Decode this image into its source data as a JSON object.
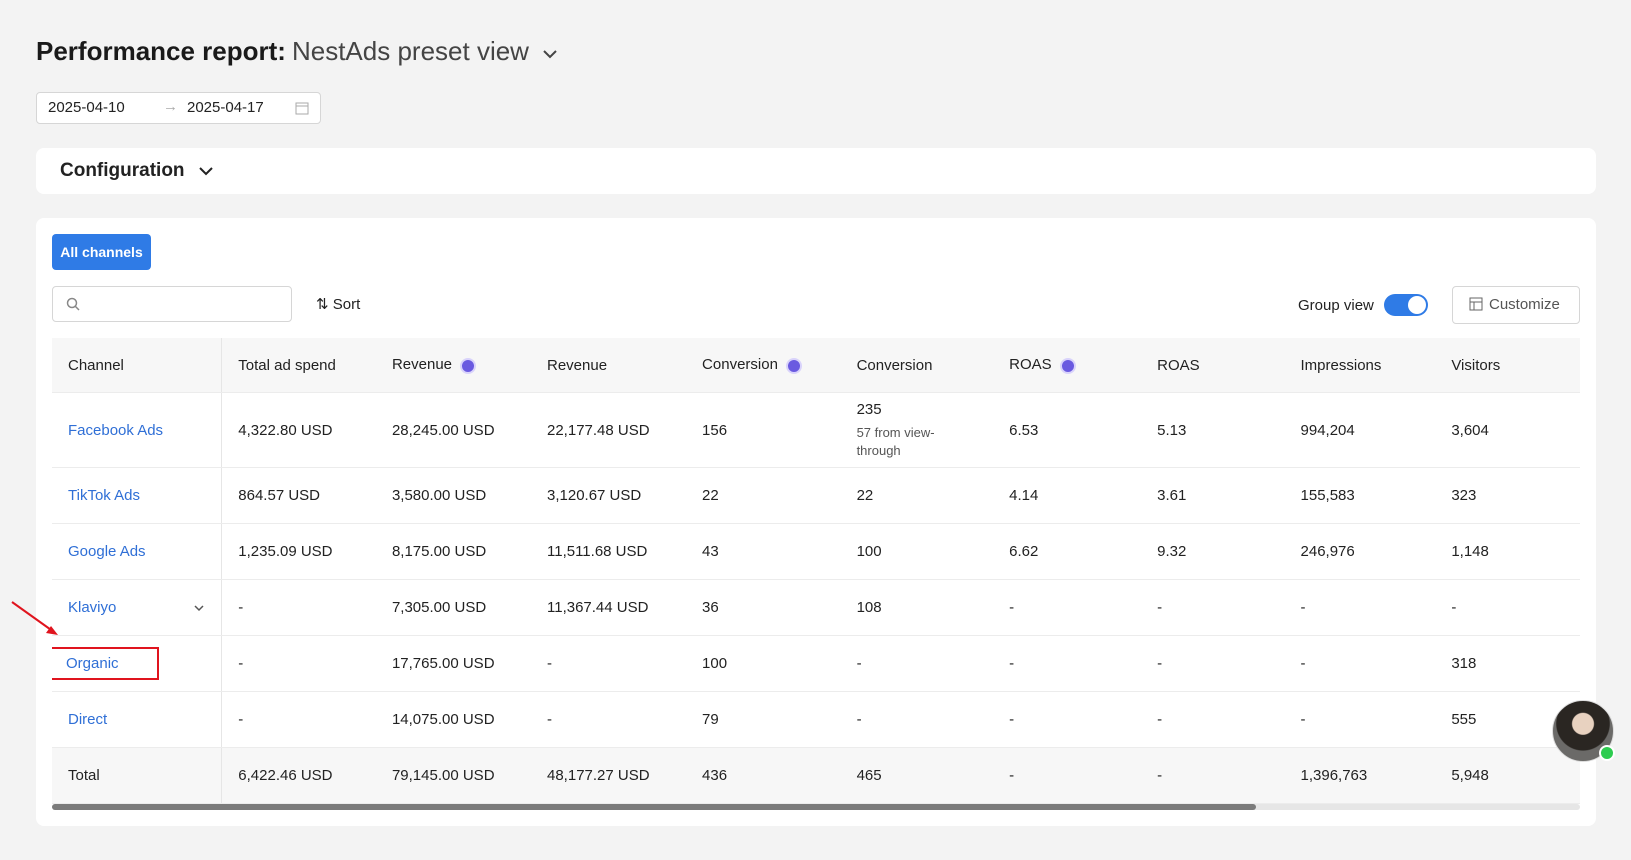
{
  "header": {
    "title": "Performance report:",
    "view": "NestAds preset view"
  },
  "date_range": {
    "start": "2025-04-10",
    "end": "2025-04-17"
  },
  "configuration": "Configuration",
  "tab": "All channels",
  "sort": "Sort",
  "group_view": {
    "label": "Group view",
    "on": true
  },
  "customize": "Customize",
  "table": {
    "columns": [
      {
        "label": "Channel"
      },
      {
        "label": "Total ad spend"
      },
      {
        "label": "Revenue",
        "icon": true
      },
      {
        "label": "Revenue"
      },
      {
        "label": "Conversion",
        "icon": true
      },
      {
        "label": "Conversion"
      },
      {
        "label": "ROAS",
        "icon": true
      },
      {
        "label": "ROAS"
      },
      {
        "label": "Impressions"
      },
      {
        "label": "Visitors"
      }
    ],
    "rows": [
      {
        "channel": "Facebook Ads",
        "cells": [
          "4,322.80 USD",
          "28,245.00 USD",
          "22,177.48 USD",
          "156",
          {
            "value": "235",
            "note": "57 from view-through"
          },
          "6.53",
          "5.13",
          "994,204",
          "3,604"
        ]
      },
      {
        "channel": "TikTok Ads",
        "cells": [
          "864.57 USD",
          "3,580.00 USD",
          "3,120.67 USD",
          "22",
          "22",
          "4.14",
          "3.61",
          "155,583",
          "323"
        ]
      },
      {
        "channel": "Google Ads",
        "cells": [
          "1,235.09 USD",
          "8,175.00 USD",
          "11,511.68 USD",
          "43",
          "100",
          "6.62",
          "9.32",
          "246,976",
          "1,148"
        ]
      },
      {
        "channel": "Klaviyo",
        "expandable": true,
        "cells": [
          "-",
          "7,305.00 USD",
          "11,367.44 USD",
          "36",
          "108",
          "-",
          "-",
          "-",
          "-"
        ]
      },
      {
        "channel": "Organic",
        "highlighted": true,
        "cells": [
          "-",
          "17,765.00 USD",
          "-",
          "100",
          "-",
          "-",
          "-",
          "-",
          "318"
        ]
      },
      {
        "channel": "Direct",
        "cells": [
          "-",
          "14,075.00 USD",
          "-",
          "79",
          "-",
          "-",
          "-",
          "-",
          "555"
        ]
      }
    ],
    "total": {
      "channel": "Total",
      "cells": [
        "6,422.46 USD",
        "79,145.00 USD",
        "48,177.27 USD",
        "436",
        "465",
        "-",
        "-",
        "1,396,763",
        "5,948"
      ]
    }
  }
}
